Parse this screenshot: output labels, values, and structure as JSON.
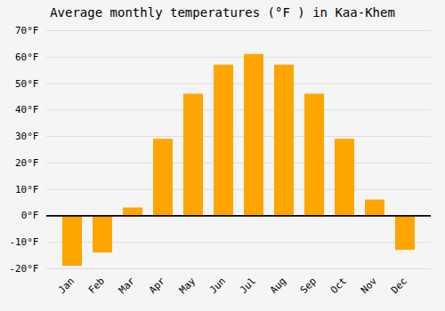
{
  "chart_data": {
    "type": "bar",
    "title": "Average monthly temperatures (°F ) in Kaa-Khem",
    "categories": [
      "Jan",
      "Feb",
      "Mar",
      "Apr",
      "May",
      "Jun",
      "Jul",
      "Aug",
      "Sep",
      "Oct",
      "Nov",
      "Dec"
    ],
    "values": [
      -19,
      -14,
      3,
      29,
      46,
      57,
      61,
      57,
      46,
      29,
      6,
      -13
    ],
    "color": "#FFA500",
    "ylim": [
      -20,
      70
    ],
    "yticks": [
      {
        "value": -20,
        "label": "-20°F"
      },
      {
        "value": -10,
        "label": "-10°F"
      },
      {
        "value": 0,
        "label": "0°F"
      },
      {
        "value": 10,
        "label": "10°F"
      },
      {
        "value": 20,
        "label": "20°F"
      },
      {
        "value": 30,
        "label": "30°F"
      },
      {
        "value": 40,
        "label": "40°F"
      },
      {
        "value": 50,
        "label": "50°F"
      },
      {
        "value": 60,
        "label": "60°F"
      },
      {
        "value": 70,
        "label": "70°F"
      }
    ],
    "grid": true
  }
}
